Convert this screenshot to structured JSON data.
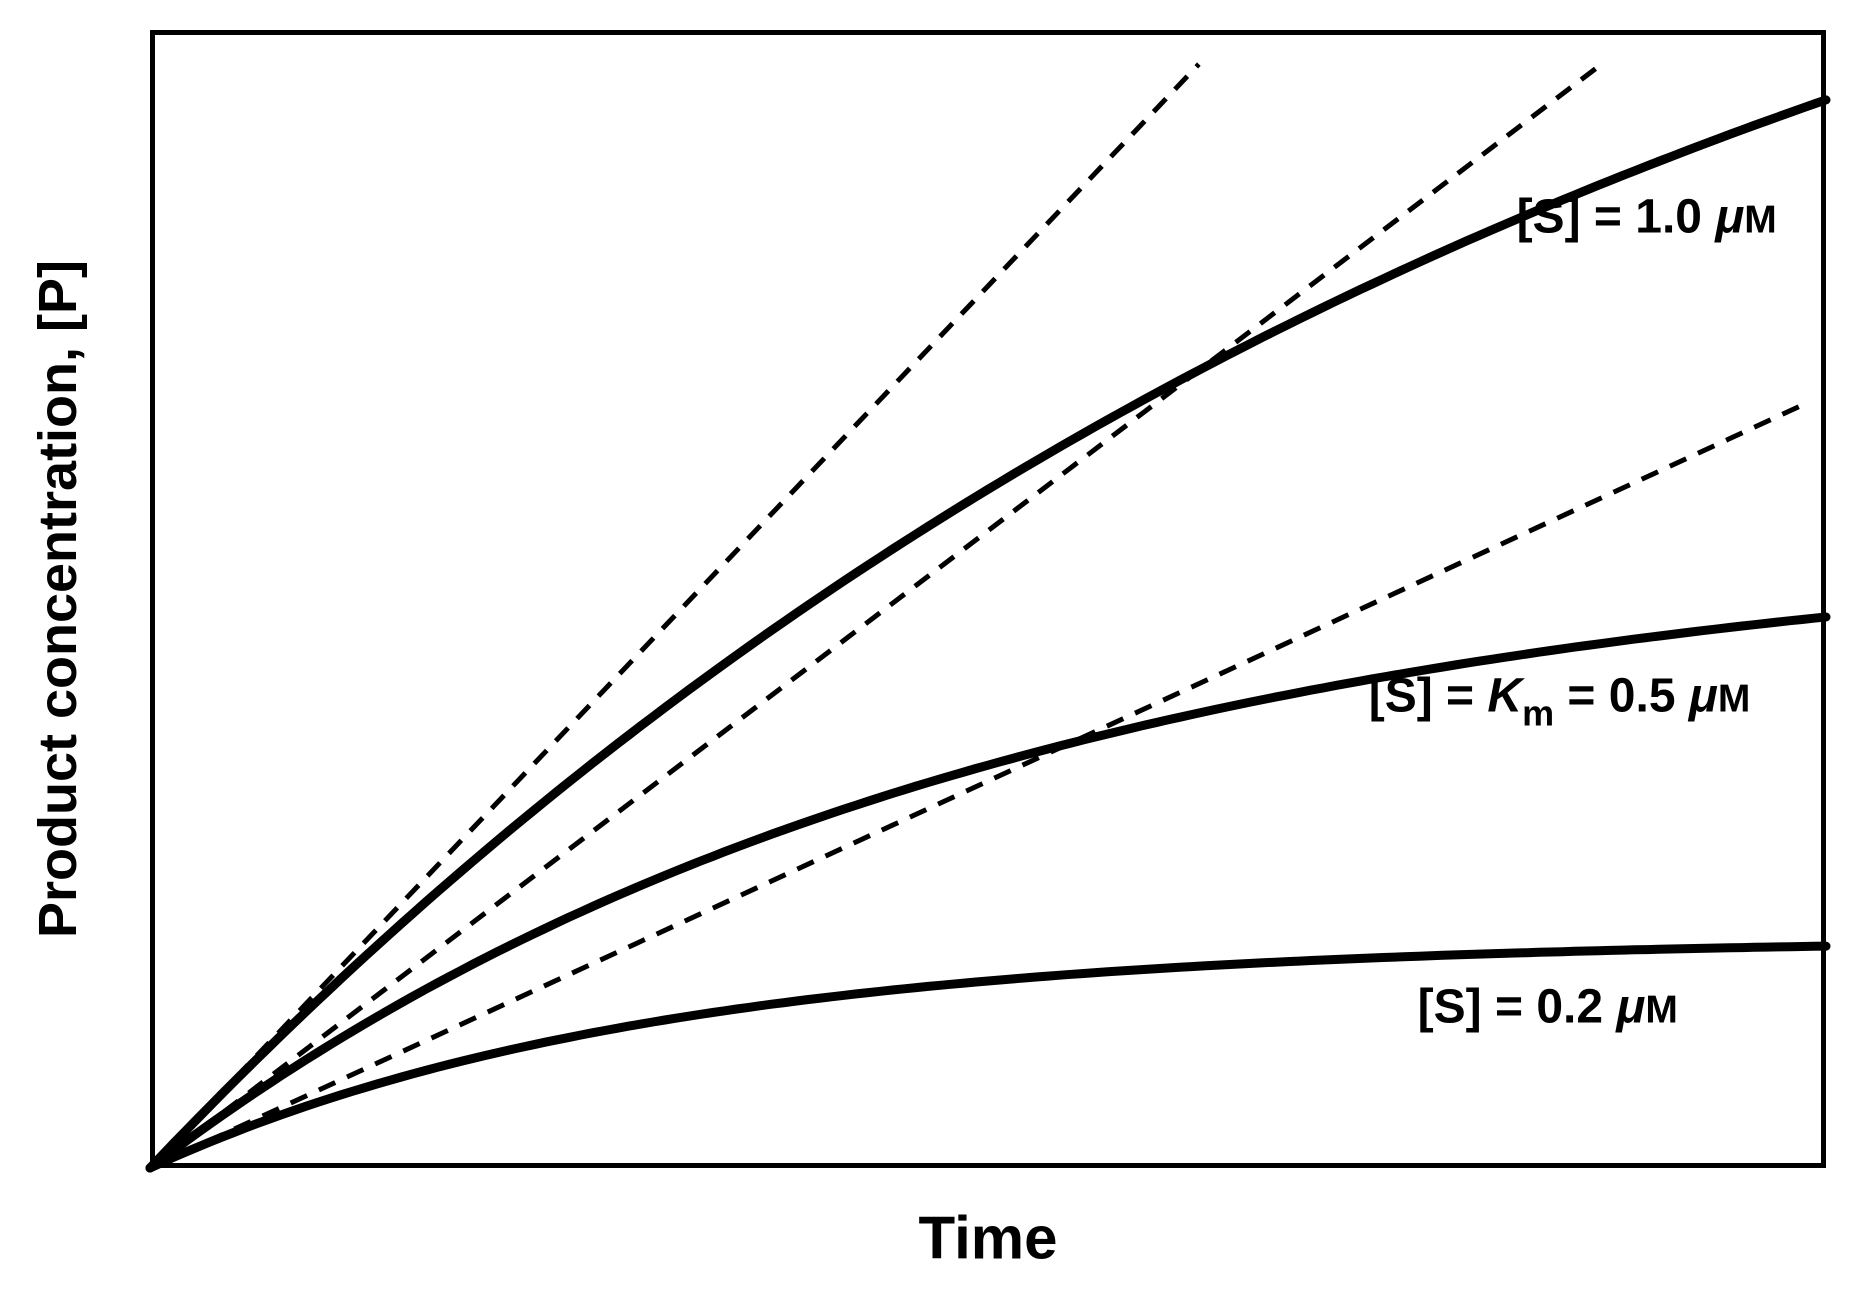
{
  "figure": {
    "background": "#ffffff",
    "ink_color": "#000000",
    "description": "Enzyme kinetics progress curves: product concentration versus time at three substrate concentrations; each solid curve has a dashed initial-velocity tangent line drawn from the origin."
  },
  "chart_data": {
    "type": "line",
    "title": "",
    "xlabel": "Time",
    "ylabel": "Product concentration, [P]",
    "x_range": [
      0,
      1
    ],
    "y_range": [
      0,
      1
    ],
    "axes": {
      "grid": false,
      "tick_labels": false,
      "frame": "full-box"
    },
    "legend": "inline-curve-labels",
    "series": [
      {
        "id": "s-1-0um",
        "label_text": "[S] = 1.0 μM",
        "label_parts": [
          {
            "text": "[S] = 1.0 "
          },
          {
            "text": "μ",
            "style": "italic"
          },
          {
            "text": "M",
            "style": "small"
          }
        ],
        "label_anchor": {
          "x": 0.893,
          "y": 0.837
        },
        "model": "P(t) = A*(1 - exp(-k*t))",
        "A": 1.4,
        "k": 1.11,
        "initial_slope": 1.55,
        "line": "solid",
        "tangent_line": "dashed",
        "points": [
          [
            0,
            0
          ],
          [
            0.1,
            0.147
          ],
          [
            0.2,
            0.279
          ],
          [
            0.3,
            0.397
          ],
          [
            0.4,
            0.502
          ],
          [
            0.5,
            0.596
          ],
          [
            0.6,
            0.681
          ],
          [
            0.7,
            0.756
          ],
          [
            0.8,
            0.824
          ],
          [
            0.9,
            0.884
          ],
          [
            1.0,
            0.939
          ]
        ]
      },
      {
        "id": "s-km-0-5um",
        "label_text": "[S] = Km = 0.5 μM",
        "label_parts": [
          {
            "text": "[S] = "
          },
          {
            "text": "K",
            "style": "italic"
          },
          {
            "text": "m",
            "style": "sub"
          },
          {
            "text": " = 0.5 "
          },
          {
            "text": "μ",
            "style": "italic"
          },
          {
            "text": "M",
            "style": "small"
          }
        ],
        "label_anchor": {
          "x": 0.841,
          "y": 0.416
        },
        "model": "P(t) = A*(1 - exp(-k*t))",
        "A": 0.56,
        "k": 2.0,
        "initial_slope": 1.12,
        "line": "solid",
        "tangent_line": "dashed",
        "points": [
          [
            0,
            0
          ],
          [
            0.1,
            0.102
          ],
          [
            0.2,
            0.185
          ],
          [
            0.3,
            0.253
          ],
          [
            0.4,
            0.308
          ],
          [
            0.5,
            0.354
          ],
          [
            0.6,
            0.391
          ],
          [
            0.7,
            0.422
          ],
          [
            0.8,
            0.447
          ],
          [
            0.9,
            0.467
          ],
          [
            1.0,
            0.484
          ]
        ]
      },
      {
        "id": "s-0-2um",
        "label_text": "[S] = 0.2 μM",
        "label_parts": [
          {
            "text": "[S] = 0.2 "
          },
          {
            "text": "μ",
            "style": "italic"
          },
          {
            "text": "M",
            "style": "small"
          }
        ],
        "label_anchor": {
          "x": 0.834,
          "y": 0.143
        },
        "model": "P(t) = A*(1 - exp(-k*t))",
        "A": 0.202,
        "k": 3.36,
        "initial_slope": 0.68,
        "line": "solid",
        "tangent_line": "dashed",
        "points": [
          [
            0,
            0
          ],
          [
            0.1,
            0.058
          ],
          [
            0.2,
            0.099
          ],
          [
            0.3,
            0.128
          ],
          [
            0.4,
            0.149
          ],
          [
            0.5,
            0.164
          ],
          [
            0.6,
            0.175
          ],
          [
            0.7,
            0.183
          ],
          [
            0.8,
            0.188
          ],
          [
            0.9,
            0.192
          ],
          [
            1.0,
            0.195
          ]
        ]
      }
    ],
    "tangent_clip": {
      "max_x": 0.985,
      "max_y": 0.97
    },
    "style": {
      "curve_width": 9,
      "tangent_width": 5,
      "dash_pattern": "18 13",
      "frame_width": 5,
      "label_font_size": 48,
      "sub_font_size": 36,
      "small_font_size": 39,
      "sub_dy": 14
    }
  }
}
